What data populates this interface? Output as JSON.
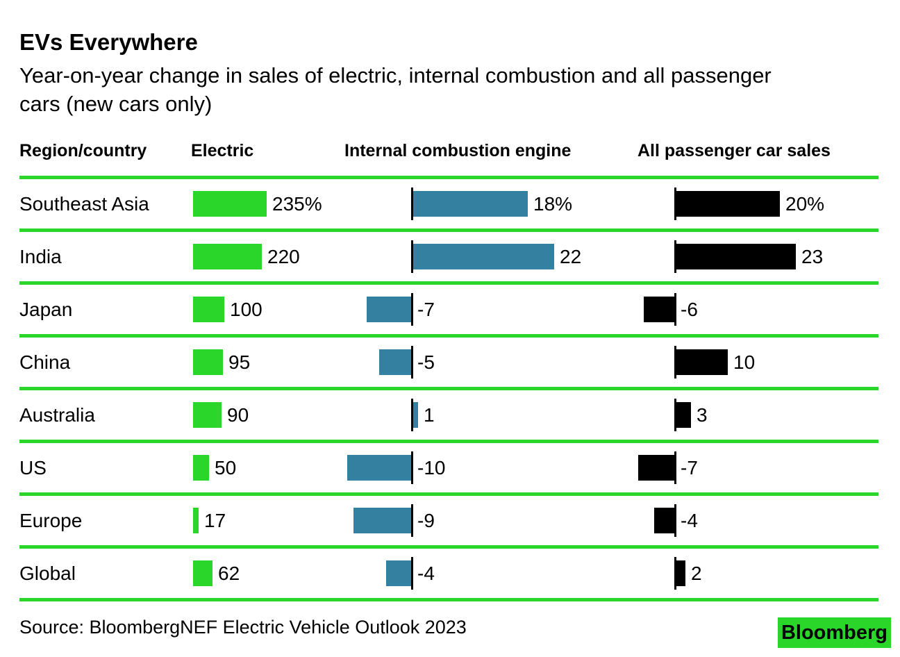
{
  "title": "EVs Everywhere",
  "subtitle": "Year-on-year change in sales of electric, internal combustion and all passenger cars (new cars only)",
  "source": "Source: BloombergNEF Electric Vehicle Outlook 2023",
  "logo_text": "Bloomberg",
  "colors": {
    "green": "#2bd62b",
    "blue": "#3380a0",
    "black": "#000000"
  },
  "chart_data": {
    "type": "bar",
    "orientation": "horizontal",
    "title": "EVs Everywhere",
    "subtitle": "Year-on-year change in sales of electric, internal combustion and all passenger cars (new cars only)",
    "legend_position": "column-headers",
    "grid": "green row separator lines",
    "columns": [
      "Region/country",
      "Electric",
      "Internal combustion engine",
      "All passenger car sales"
    ],
    "series_colors": {
      "electric": "#2bd62b",
      "internal_combustion": "#3380a0",
      "all_passenger": "#000000"
    },
    "rows": [
      {
        "label": "Southeast Asia",
        "electric": 235,
        "electric_text": "235%",
        "ice": 18,
        "ice_text": "18%",
        "all": 20,
        "all_text": "20%"
      },
      {
        "label": "India",
        "electric": 220,
        "electric_text": "220",
        "ice": 22,
        "ice_text": "22",
        "all": 23,
        "all_text": "23"
      },
      {
        "label": "Japan",
        "electric": 100,
        "electric_text": "100",
        "ice": -7,
        "ice_text": "-7",
        "all": -6,
        "all_text": "-6"
      },
      {
        "label": "China",
        "electric": 95,
        "electric_text": "95",
        "ice": -5,
        "ice_text": "-5",
        "all": 10,
        "all_text": "10"
      },
      {
        "label": "Australia",
        "electric": 90,
        "electric_text": "90",
        "ice": 1,
        "ice_text": "1",
        "all": 3,
        "all_text": "3"
      },
      {
        "label": "US",
        "electric": 50,
        "electric_text": "50",
        "ice": -10,
        "ice_text": "-10",
        "all": -7,
        "all_text": "-7"
      },
      {
        "label": "Europe",
        "electric": 17,
        "electric_text": "17",
        "ice": -9,
        "ice_text": "-9",
        "all": -4,
        "all_text": "-4"
      },
      {
        "label": "Global",
        "electric": 62,
        "electric_text": "62",
        "ice": -4,
        "ice_text": "-4",
        "all": 2,
        "all_text": "2"
      }
    ]
  }
}
